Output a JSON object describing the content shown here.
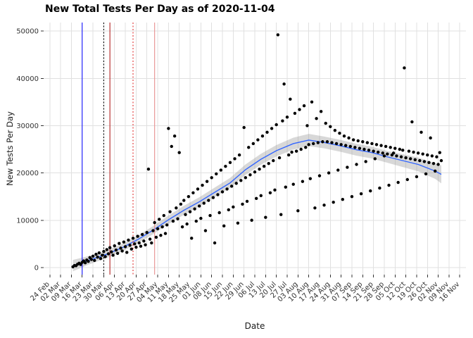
{
  "header": {
    "title": "New Total Tests Per Day as of 2020-11-04"
  },
  "chart_data": {
    "type": "scatter",
    "title": "New Total Tests Per Day as of 2020-11-04",
    "xlabel": "Date",
    "ylabel": "New Tests Per Day",
    "legend": "none",
    "grid": true,
    "start_date": "2020-03-10",
    "x_domain": [
      -19,
      255
    ],
    "y_domain": [
      -1500,
      51800
    ],
    "x_tick_labels": [
      "24 Feb",
      "02 Mar",
      "09 Mar",
      "16 Mar",
      "23 Mar",
      "30 Mar",
      "06 Apr",
      "13 Apr",
      "20 Apr",
      "27 Apr",
      "04 May",
      "11 May",
      "18 May",
      "25 May",
      "01 Jun",
      "08 Jun",
      "15 Jun",
      "22 Jun",
      "29 Jun",
      "06 Jul",
      "13 Jul",
      "20 Jul",
      "27 Jul",
      "03 Aug",
      "10 Aug",
      "17 Aug",
      "24 Aug",
      "31 Aug",
      "07 Sep",
      "14 Sep",
      "21 Sep",
      "28 Sep",
      "05 Oct",
      "12 Oct",
      "19 Oct",
      "26 Oct",
      "02 Nov",
      "09 Nov",
      "16 Nov"
    ],
    "x_tick_days": [
      -15,
      -8,
      -1,
      6,
      13,
      20,
      27,
      34,
      41,
      48,
      55,
      62,
      69,
      76,
      83,
      90,
      97,
      104,
      111,
      118,
      125,
      132,
      139,
      146,
      153,
      160,
      167,
      174,
      181,
      188,
      195,
      202,
      209,
      216,
      223,
      230,
      237,
      244,
      251
    ],
    "y_ticks": [
      {
        "label": "0",
        "value": 0
      },
      {
        "label": "10000",
        "value": 10000
      },
      {
        "label": "20000",
        "value": 20000
      },
      {
        "label": "30000",
        "value": 30000
      },
      {
        "label": "40000",
        "value": 40000
      },
      {
        "label": "50000",
        "value": 50000
      }
    ],
    "daily_values": [
      150,
      420,
      380,
      700,
      900,
      650,
      1100,
      1400,
      1000,
      1600,
      1300,
      2100,
      1700,
      2400,
      1500,
      2800,
      2200,
      3100,
      1900,
      2600,
      3400,
      2300,
      3800,
      2900,
      4200,
      3300,
      2600,
      4600,
      3700,
      3000,
      5100,
      4100,
      3500,
      5400,
      4400,
      3200,
      5800,
      4700,
      3900,
      6200,
      5000,
      4300,
      6600,
      5200,
      4500,
      7000,
      5600,
      4800,
      7400,
      20800,
      6000,
      5200,
      7800,
      9500,
      6400,
      8200,
      10200,
      6800,
      8600,
      11000,
      7200,
      9000,
      29400,
      11800,
      25600,
      9800,
      27800,
      12600,
      10300,
      24300,
      13400,
      8600,
      14200,
      11200,
      9200,
      15000,
      11800,
      6200,
      15800,
      12400,
      9800,
      16600,
      13000,
      10400,
      17400,
      13600,
      7800,
      18200,
      14200,
      11000,
      19000,
      14800,
      5200,
      19800,
      15400,
      11600,
      20600,
      16000,
      8800,
      21400,
      16600,
      12200,
      22200,
      17200,
      12800,
      23000,
      17800,
      9400,
      23800,
      18400,
      13400,
      29600,
      19000,
      14000,
      25400,
      19600,
      10000,
      26200,
      20200,
      14600,
      27000,
      20800,
      15200,
      27800,
      21400,
      10600,
      28600,
      22000,
      15800,
      29400,
      22600,
      16400,
      30200,
      49200,
      23200,
      11200,
      31000,
      38800,
      17000,
      31800,
      23800,
      35600,
      24400,
      17600,
      32600,
      24600,
      12000,
      33400,
      25000,
      18200,
      34200,
      25400,
      30000,
      26000,
      18800,
      35000,
      26200,
      12600,
      31500,
      26400,
      19400,
      33000,
      26600,
      13200,
      30500,
      26600,
      20000,
      29800,
      26400,
      13800,
      29000,
      26200,
      20600,
      28400,
      26000,
      14400,
      27800,
      25800,
      21200,
      27400,
      25600,
      15000,
      27000,
      25400,
      21800,
      26800,
      25200,
      15600,
      26600,
      25000,
      22400,
      26400,
      24800,
      16200,
      26200,
      24600,
      23000,
      26000,
      24400,
      16800,
      25800,
      24200,
      23600,
      25600,
      24000,
      17400,
      25400,
      23800,
      24200,
      25200,
      23600,
      18000,
      25000,
      23400,
      24800,
      42200,
      23200,
      18600,
      24600,
      23000,
      30800,
      24400,
      22800,
      19200,
      24200,
      22600,
      28600,
      24000,
      22400,
      19800,
      23800,
      22200,
      27400,
      23600,
      22000,
      20400,
      23400,
      21800,
      24300,
      22600
    ],
    "smooth": [
      [
        0,
        400,
        1200
      ],
      [
        10,
        1500,
        900
      ],
      [
        21,
        2700,
        800
      ],
      [
        32,
        4200,
        800
      ],
      [
        42,
        5900,
        800
      ],
      [
        52,
        7900,
        850
      ],
      [
        62,
        10100,
        900
      ],
      [
        72,
        12100,
        950
      ],
      [
        82,
        13900,
        950
      ],
      [
        92,
        15900,
        1000
      ],
      [
        102,
        17900,
        1050
      ],
      [
        112,
        20700,
        1100
      ],
      [
        122,
        22900,
        1150
      ],
      [
        132,
        24700,
        1200
      ],
      [
        143,
        26200,
        1250
      ],
      [
        153,
        26950,
        1300
      ],
      [
        163,
        26450,
        1250
      ],
      [
        174,
        25700,
        1250
      ],
      [
        184,
        24900,
        1250
      ],
      [
        194,
        24300,
        1250
      ],
      [
        204,
        23400,
        1250
      ],
      [
        214,
        22600,
        1350
      ],
      [
        224,
        21800,
        1450
      ],
      [
        235,
        20400,
        1650
      ],
      [
        239,
        19700,
        1900
      ]
    ],
    "vlines": [
      {
        "day": 6,
        "color": "#1414FF",
        "style": "solid"
      },
      {
        "day": 20,
        "color": "#000000",
        "style": "dotted"
      },
      {
        "day": 24,
        "color": "#B22222",
        "style": "solid"
      },
      {
        "day": 39,
        "color": "#E03030",
        "style": "dotted"
      },
      {
        "day": 53,
        "color": "#E89090",
        "style": "solid"
      }
    ],
    "colors": {
      "point": "#000000",
      "smooth_line": "#3366FF",
      "ribbon": "#999999",
      "grid": "#E0E0E0",
      "axis_text": "#333333",
      "tick_mark": "#333333"
    }
  }
}
